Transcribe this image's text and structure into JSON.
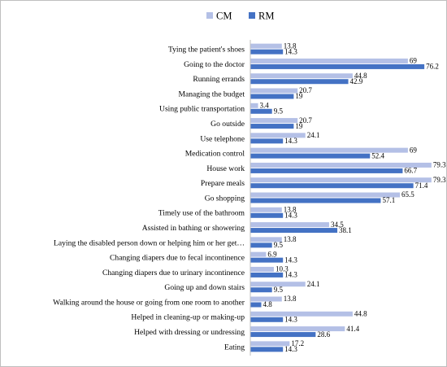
{
  "chart_data": {
    "type": "bar",
    "orientation": "horizontal",
    "categories": [
      "Tying the patient's shoes",
      "Going to the doctor",
      "Running errands",
      "Managing the budget",
      "Using public transportation",
      "Go outside",
      "Use telephone",
      "Medication control",
      "House work",
      "Prepare meals",
      "Go shopping",
      "Timely use of the bathroom",
      "Assisted in bathing or showering",
      "Laying the disabled person down or helping him or her get…",
      "Changing diapers due to fecal incontinence",
      "Changing diapers due to urinary incontinence",
      "Going up and down stairs",
      "Walking around the house or going from one room to another",
      "Helped in cleaning-up or making-up",
      "Helped with dressing or undressing",
      "Eating"
    ],
    "series": [
      {
        "name": "CM",
        "color": "#b4c0e6",
        "values": [
          13.8,
          69,
          44.8,
          20.7,
          3.4,
          20.7,
          24.1,
          69,
          79.3,
          79.3,
          65.5,
          13.8,
          34.5,
          13.8,
          6.9,
          10.3,
          24.1,
          13.8,
          44.8,
          41.4,
          17.2
        ],
        "labels": [
          "13.8",
          "69",
          "44.8",
          "20.7",
          "3.4",
          "20.7",
          "24.1",
          "69",
          "79.3",
          "79.3",
          "65.5",
          "13.8",
          "34.5",
          "13.8",
          "6.9",
          "10.3",
          "24.1",
          "13.8",
          "44.8",
          "41.4",
          "17.2"
        ]
      },
      {
        "name": "RM",
        "color": "#4472c4",
        "values": [
          14.3,
          76.2,
          42.9,
          19,
          9.5,
          19,
          14.3,
          52.4,
          66.7,
          71.4,
          57.1,
          14.3,
          38.1,
          9.5,
          14.3,
          14.3,
          9.5,
          4.8,
          14.3,
          28.6,
          14.3
        ],
        "labels": [
          "14.3",
          "76.2",
          "42.9",
          "19",
          "9.5",
          "19",
          "14.3",
          "52.4",
          "66.7",
          "71.4",
          "57.1",
          "14.3",
          "38.1",
          "9.5",
          "14.3",
          "14.3",
          "9.5",
          "4.8",
          "14.3",
          "28.6",
          "14.3"
        ]
      }
    ],
    "xlim": [
      0,
      90
    ],
    "grid": false,
    "legend": "top-center"
  }
}
